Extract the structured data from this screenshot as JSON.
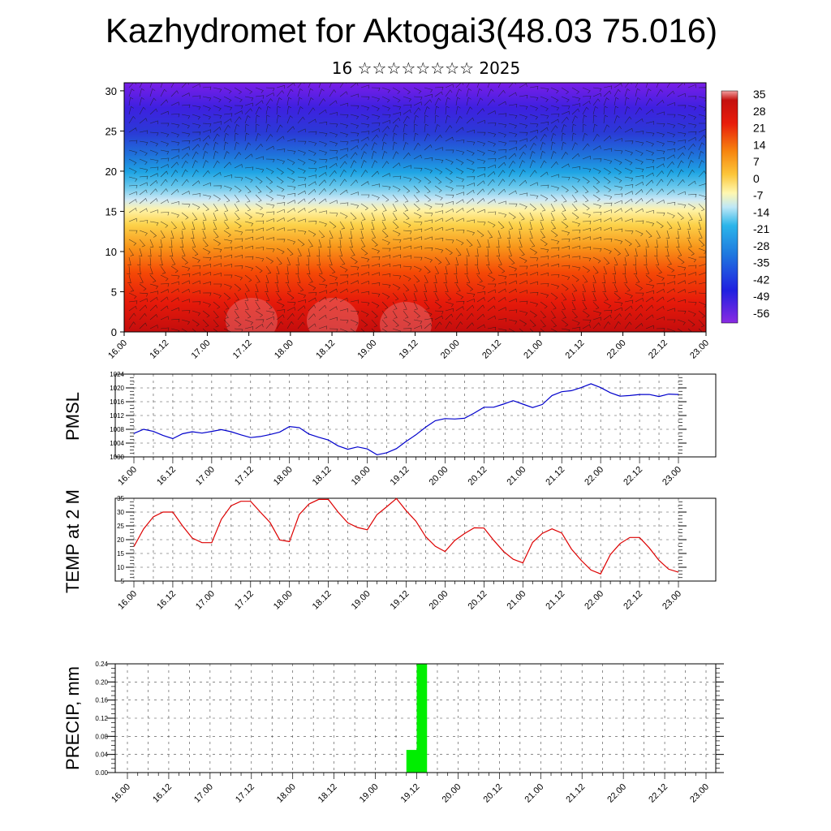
{
  "title": "Kazhydromet for Aktogai3(48.03 75.016)",
  "subtitle": "16 ☆☆☆☆☆☆☆☆ 2025",
  "time_ticks": [
    "16.00",
    "16.12",
    "17.00",
    "17.12",
    "18.00",
    "18.12",
    "19.00",
    "19.12",
    "20.00",
    "20.12",
    "21.00",
    "21.12",
    "22.00",
    "22.12",
    "23.00"
  ],
  "colors": {
    "pmsl_line": "#0000cc",
    "temp_line": "#dd0000",
    "precip_bar": "#00ee00"
  },
  "chart_data": [
    {
      "type": "heatmap",
      "name": "cross-section",
      "x_label_ticks": [
        "16.00",
        "16.12",
        "17.00",
        "17.12",
        "18.00",
        "18.12",
        "19.00",
        "19.12",
        "20.00",
        "20.12",
        "21.00",
        "21.12",
        "22.00",
        "22.12",
        "23.00"
      ],
      "y_ticks": [
        "0",
        "5",
        "10",
        "15",
        "20",
        "25",
        "30"
      ],
      "ylim": [
        0,
        31
      ],
      "colorbar_labels": [
        "35",
        "28",
        "21",
        "14",
        "7",
        "0",
        "-7",
        "-14",
        "-21",
        "-28",
        "-35",
        "-42",
        "-49",
        "-56"
      ],
      "colorbar_range": [
        -60,
        38
      ],
      "overlay": "wind barbs"
    },
    {
      "type": "line",
      "ylabel": "PMSL",
      "y_ticks": [
        "1024",
        "1020",
        "1016",
        "1012",
        "1008",
        "1004",
        "1000"
      ],
      "ylim": [
        1000,
        1024
      ],
      "x": [
        0,
        3,
        6,
        9,
        12,
        15,
        18,
        21,
        24,
        27,
        30,
        33,
        36,
        39,
        42,
        45,
        48,
        51,
        54,
        57,
        60,
        63,
        66,
        69,
        72,
        75,
        78,
        81,
        84,
        87,
        90,
        93,
        96,
        99,
        102,
        105,
        108,
        111,
        114,
        117,
        120,
        123,
        126,
        129,
        132,
        135,
        138,
        141,
        144,
        147,
        150,
        153,
        156,
        159,
        162,
        165,
        168
      ],
      "values": [
        1006.8,
        1008,
        1007.4,
        1006.2,
        1005.3,
        1006.7,
        1007.3,
        1006.9,
        1007.4,
        1007.9,
        1007.3,
        1006.4,
        1005.6,
        1005.9,
        1006.5,
        1007.2,
        1008.8,
        1008.5,
        1006.6,
        1005.7,
        1004.9,
        1003.2,
        1002.2,
        1002.9,
        1002.3,
        1000.6,
        1001.2,
        1002.4,
        1004.5,
        1006.4,
        1008.6,
        1010.5,
        1011.1,
        1011,
        1011.2,
        1012.7,
        1014.4,
        1014.4,
        1015.3,
        1016.3,
        1015.3,
        1014.3,
        1015.2,
        1017.8,
        1018.9,
        1019.2,
        1020.1,
        1021.2,
        1020.1,
        1018.6,
        1017.6,
        1017.8,
        1018.1,
        1018.1,
        1017.5,
        1018.2,
        1018.1
      ]
    },
    {
      "type": "line",
      "ylabel": "TEMP at 2 M",
      "y_ticks": [
        "35",
        "30",
        "25",
        "20",
        "15",
        "10",
        "5"
      ],
      "ylim": [
        5,
        35
      ],
      "x": [
        0,
        3,
        6,
        9,
        12,
        15,
        18,
        21,
        24,
        27,
        30,
        33,
        36,
        39,
        42,
        45,
        48,
        51,
        54,
        57,
        60,
        63,
        66,
        69,
        72,
        75,
        78,
        81,
        84,
        87,
        90,
        93,
        96,
        99,
        102,
        105,
        108,
        111,
        114,
        117,
        120,
        123,
        126,
        129,
        132,
        135,
        138,
        141,
        144,
        147,
        150,
        153,
        156,
        159,
        162,
        165,
        168
      ],
      "values": [
        17.5,
        23.9,
        28.3,
        30,
        30,
        25,
        20.6,
        18.9,
        18.9,
        27.4,
        32.3,
        33.9,
        33.9,
        30,
        26.2,
        19.9,
        19.3,
        29.1,
        32.9,
        34.6,
        34.6,
        30,
        26.1,
        24.4,
        23.6,
        29.1,
        31.9,
        34.9,
        30.5,
        26.7,
        21.1,
        17.6,
        15.7,
        19.7,
        22.2,
        24.3,
        24.2,
        19.8,
        15.8,
        12.9,
        11.6,
        19,
        22.3,
        23.9,
        22.4,
        16.6,
        12.5,
        9,
        7.6,
        14.6,
        18.6,
        20.8,
        20.8,
        17,
        12.5,
        9.3,
        8.2
      ]
    },
    {
      "type": "bar",
      "ylabel": "PRECIP, mm",
      "y_ticks": [
        "0.24",
        "0.20",
        "0.16",
        "0.12",
        "0.08",
        "0.04",
        "0.00"
      ],
      "ylim": [
        0,
        0.24
      ],
      "bars": [
        {
          "x0": 81,
          "x1": 84,
          "value": 0.05
        },
        {
          "x0": 84,
          "x1": 87,
          "value": 0.24
        }
      ]
    }
  ]
}
